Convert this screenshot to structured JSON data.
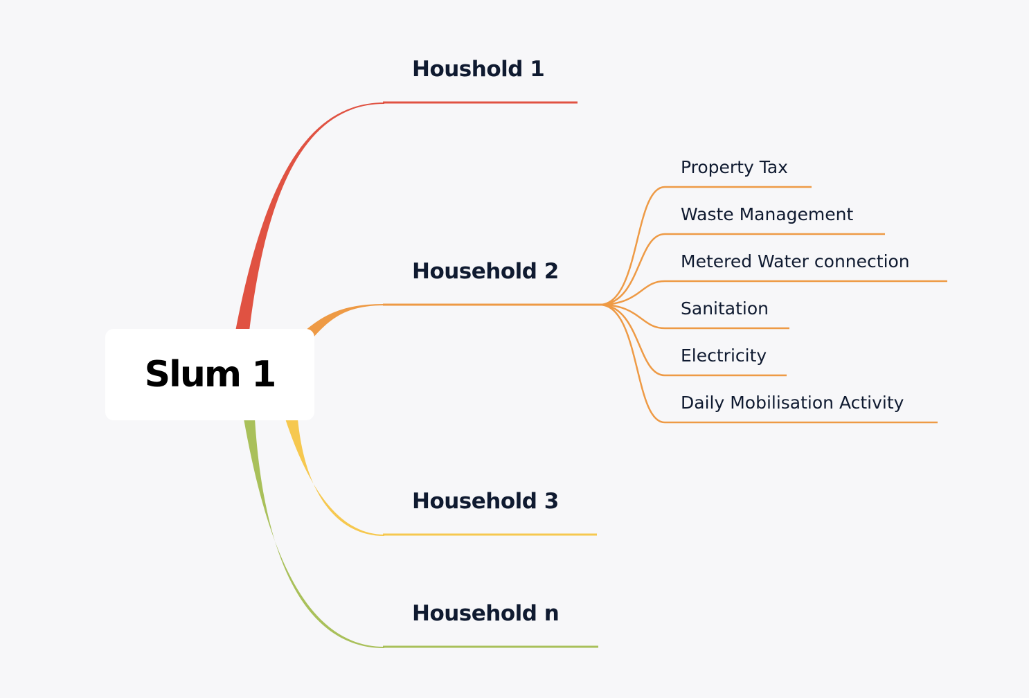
{
  "root": {
    "label": "Slum 1"
  },
  "branches": [
    {
      "label": "Houshold 1",
      "color": "#e05242"
    },
    {
      "label": "Household 2",
      "color": "#ee9a45"
    },
    {
      "label": "Household 3",
      "color": "#f6c84f"
    },
    {
      "label": "Household n",
      "color": "#a9c05a"
    }
  ],
  "household_2_items": [
    {
      "label": "Property Tax"
    },
    {
      "label": "Waste Management"
    },
    {
      "label": "Metered Water connection"
    },
    {
      "label": "Sanitation"
    },
    {
      "label": "Electricity"
    },
    {
      "label": "Daily Mobilisation Activity"
    }
  ],
  "colors": {
    "background": "#f7f7f9",
    "node": "#ffffff",
    "text": "#0f1a30"
  }
}
